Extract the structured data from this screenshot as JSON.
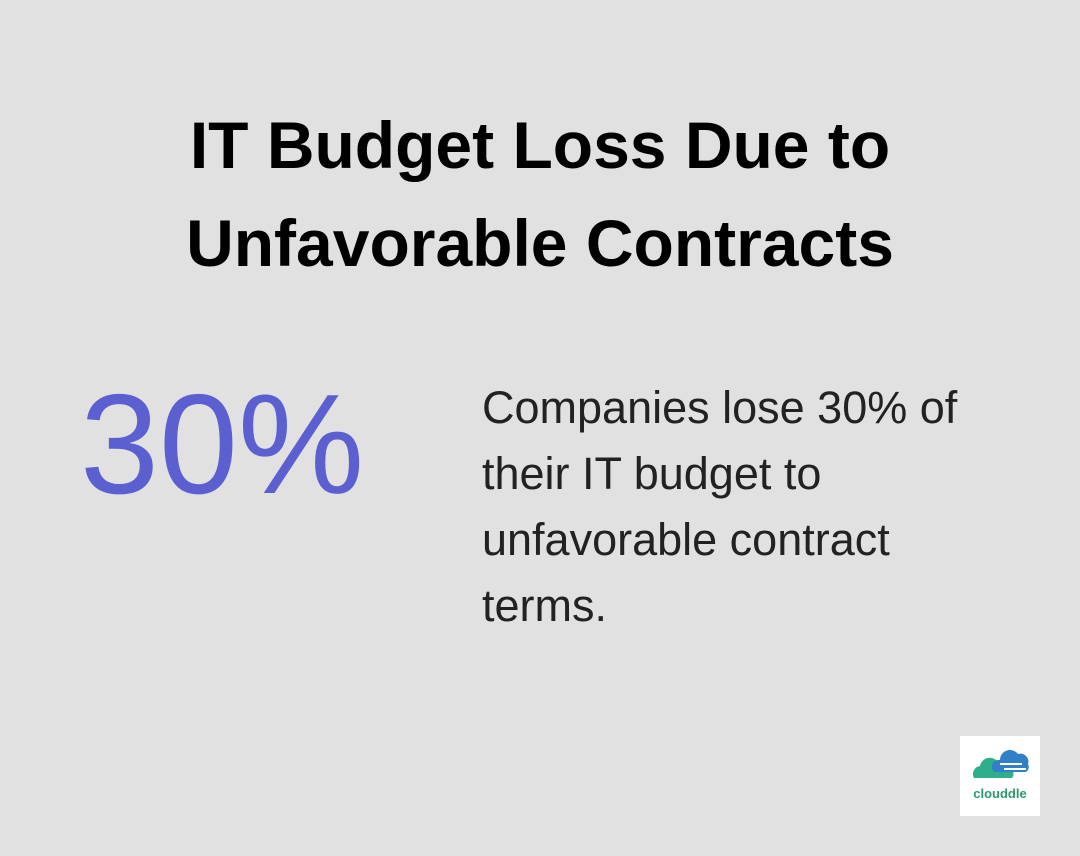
{
  "title": "IT Budget Loss Due to Unfavorable Contracts",
  "stat": {
    "value": "30%",
    "description": "Companies lose 30% of their IT budget to unfavorable contract terms."
  },
  "logo": {
    "text": "clouddle"
  }
}
